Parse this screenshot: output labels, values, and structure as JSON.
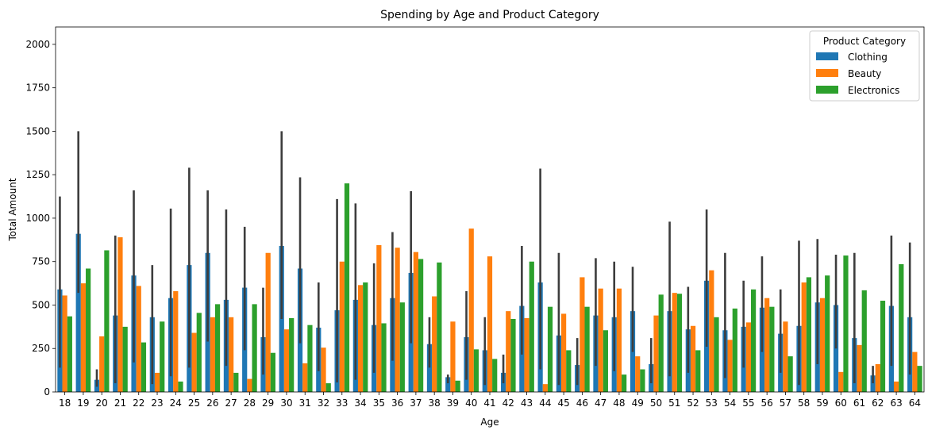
{
  "chart_data": {
    "type": "bar",
    "title": "Spending by Age and Product Category",
    "xlabel": "Age",
    "ylabel": "Total Amount",
    "ylim": [
      0,
      2100
    ],
    "yticks": [
      0,
      250,
      500,
      750,
      1000,
      1250,
      1500,
      1750,
      2000
    ],
    "grid": false,
    "legend": {
      "title": "Product Category",
      "placement": "top-right"
    },
    "categories": [
      "18",
      "19",
      "20",
      "21",
      "22",
      "23",
      "24",
      "25",
      "26",
      "27",
      "28",
      "29",
      "30",
      "31",
      "32",
      "33",
      "34",
      "35",
      "36",
      "37",
      "38",
      "39",
      "40",
      "41",
      "42",
      "43",
      "44",
      "45",
      "46",
      "47",
      "48",
      "49",
      "50",
      "51",
      "52",
      "53",
      "54",
      "55",
      "56",
      "57",
      "58",
      "59",
      "60",
      "61",
      "62",
      "63",
      "64"
    ],
    "series": [
      {
        "name": "Clothing",
        "color": "#1f77b4",
        "values": [
          590,
          910,
          70,
          440,
          670,
          430,
          540,
          730,
          800,
          530,
          600,
          315,
          840,
          710,
          370,
          470,
          530,
          385,
          540,
          685,
          275,
          85,
          315,
          240,
          110,
          495,
          630,
          325,
          155,
          440,
          430,
          465,
          160,
          465,
          360,
          640,
          355,
          375,
          485,
          335,
          380,
          515,
          500,
          310,
          95,
          495,
          430
        ],
        "err_low": [
          140,
          570,
          30,
          50,
          170,
          45,
          90,
          140,
          290,
          150,
          240,
          100,
          420,
          280,
          120,
          55,
          70,
          110,
          180,
          280,
          140,
          50,
          70,
          40,
          50,
          215,
          130,
          40,
          40,
          150,
          120,
          230,
          50,
          90,
          110,
          260,
          80,
          140,
          230,
          110,
          40,
          160,
          250,
          50,
          50,
          150,
          100
        ],
        "err_high": [
          1125,
          1500,
          130,
          900,
          1160,
          730,
          1055,
          1290,
          1160,
          1050,
          950,
          600,
          1500,
          1235,
          630,
          1110,
          1085,
          740,
          920,
          1155,
          430,
          100,
          580,
          430,
          215,
          840,
          1285,
          800,
          310,
          770,
          750,
          720,
          310,
          980,
          605,
          1050,
          800,
          640,
          780,
          590,
          870,
          880,
          790,
          800,
          150,
          900,
          860
        ]
      },
      {
        "name": "Beauty",
        "color": "#ff7f0e",
        "values": [
          555,
          625,
          320,
          890,
          610,
          110,
          580,
          340,
          430,
          430,
          75,
          800,
          360,
          165,
          255,
          750,
          615,
          845,
          830,
          805,
          550,
          405,
          940,
          780,
          465,
          425,
          45,
          450,
          660,
          595,
          595,
          205,
          440,
          570,
          380,
          700,
          300,
          400,
          540,
          405,
          630,
          540,
          115,
          270,
          160,
          60,
          230
        ],
        "err_low": [
          75,
          130,
          45,
          490,
          180,
          45,
          35,
          200,
          50,
          150,
          55,
          140,
          140,
          100,
          90,
          90,
          270,
          290,
          120,
          115,
          240,
          180,
          330,
          40,
          70,
          120,
          30,
          60,
          320,
          230,
          180,
          100,
          215,
          230,
          90,
          190,
          50,
          60,
          55,
          70,
          345,
          55,
          50,
          70,
          90,
          40,
          80
        ]
      },
      {
        "name": "Electronics",
        "color": "#2ca02c",
        "values": [
          435,
          710,
          815,
          375,
          285,
          405,
          60,
          455,
          505,
          110,
          505,
          225,
          425,
          385,
          50,
          1200,
          630,
          395,
          515,
          765,
          745,
          65,
          245,
          190,
          420,
          750,
          490,
          240,
          490,
          355,
          100,
          130,
          560,
          565,
          240,
          430,
          480,
          590,
          490,
          205,
          660,
          670,
          785,
          585,
          525,
          735,
          150
        ]
      }
    ]
  }
}
